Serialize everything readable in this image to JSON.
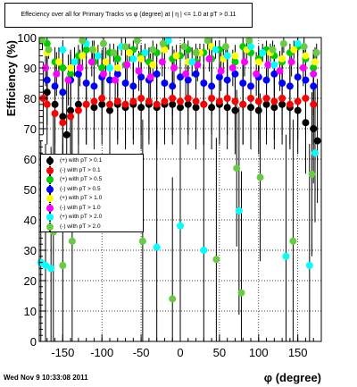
{
  "title": "Effeciency over all for Primary Tracks vs φ (degree) at |  η | <= 1.0 at pT > 0.11",
  "timestamp": "Wed Nov  9 10:33:08 2011",
  "chart_data": {
    "type": "scatter",
    "xlabel": "φ (degree)",
    "ylabel": "Efficiency (%)",
    "xlim": [
      -180,
      180
    ],
    "ylim": [
      0,
      100
    ],
    "xticks": [
      -150,
      -100,
      -50,
      0,
      50,
      100,
      150
    ],
    "yticks": [
      0,
      10,
      20,
      30,
      40,
      50,
      60,
      70,
      80,
      90,
      100
    ],
    "grid": true,
    "legend_position": "left-middle",
    "series": [
      {
        "name": "(+) with pT > 0.1",
        "color": "#000000",
        "x": [
          -170,
          -160,
          -150,
          -145,
          -140,
          -130,
          -120,
          -110,
          -100,
          -90,
          -80,
          -70,
          -60,
          -50,
          -40,
          -30,
          -20,
          -10,
          0,
          10,
          20,
          30,
          40,
          50,
          60,
          70,
          80,
          90,
          100,
          110,
          120,
          130,
          140,
          150,
          160,
          170,
          175
        ],
        "y": [
          82,
          78,
          74,
          68,
          76,
          78,
          78,
          77,
          78,
          76,
          78,
          77,
          78,
          77,
          78,
          77,
          78,
          78,
          77,
          78,
          77,
          78,
          77,
          78,
          77,
          76,
          78,
          77,
          76,
          78,
          77,
          78,
          77,
          76,
          72,
          70,
          66
        ]
      },
      {
        "name": "(-) with pT > 0.1",
        "color": "#ff0000",
        "x": [
          -175,
          -170,
          -160,
          -150,
          -140,
          -130,
          -120,
          -110,
          -100,
          -90,
          -80,
          -70,
          -60,
          -50,
          -40,
          -30,
          -20,
          -10,
          0,
          10,
          20,
          30,
          40,
          50,
          60,
          70,
          80,
          90,
          100,
          110,
          120,
          130,
          140,
          150,
          160,
          170
        ],
        "y": [
          80,
          78,
          75,
          72,
          74,
          76,
          78,
          79,
          80,
          78,
          79,
          78,
          79,
          80,
          79,
          78,
          79,
          80,
          79,
          80,
          79,
          78,
          80,
          79,
          80,
          79,
          78,
          80,
          79,
          80,
          79,
          80,
          78,
          79,
          80,
          78
        ]
      },
      {
        "name": "(+) with pT > 0.5",
        "color": "#00cc00",
        "x": [
          -170,
          -160,
          -150,
          -140,
          -130,
          -120,
          -110,
          -100,
          -90,
          -80,
          -70,
          -60,
          -50,
          -40,
          -30,
          -20,
          -10,
          0,
          10,
          20,
          30,
          40,
          50,
          60,
          70,
          80,
          90,
          100,
          110,
          120,
          130,
          140,
          150,
          160,
          170
        ],
        "y": [
          98,
          92,
          90,
          88,
          94,
          96,
          92,
          90,
          95,
          93,
          91,
          96,
          94,
          92,
          95,
          97,
          93,
          94,
          96,
          92,
          95,
          93,
          96,
          94,
          92,
          97,
          95,
          93,
          96,
          94,
          92,
          95,
          97,
          93,
          90
        ]
      },
      {
        "name": "(-) with pT > 0.5",
        "color": "#0000ff",
        "x": [
          -170,
          -160,
          -150,
          -140,
          -130,
          -120,
          -110,
          -100,
          -90,
          -80,
          -70,
          -60,
          -50,
          -40,
          -30,
          -20,
          -10,
          0,
          10,
          20,
          30,
          40,
          50,
          60,
          70,
          80,
          90,
          100,
          110,
          120,
          130,
          140,
          150,
          160,
          170
        ],
        "y": [
          86,
          84,
          82,
          86,
          88,
          85,
          84,
          87,
          86,
          88,
          85,
          84,
          87,
          86,
          88,
          85,
          84,
          87,
          86,
          88,
          85,
          84,
          87,
          86,
          88,
          85,
          84,
          87,
          86,
          88,
          85,
          84,
          87,
          86,
          84
        ]
      },
      {
        "name": "(+) with pT > 1.0",
        "color": "#ffff00",
        "x": [
          -170,
          -155,
          -140,
          -125,
          -110,
          -95,
          -80,
          -65,
          -50,
          -35,
          -20,
          -5,
          10,
          25,
          40,
          55,
          70,
          85,
          100,
          115,
          130,
          145,
          160,
          172
        ],
        "y": [
          95,
          92,
          90,
          94,
          96,
          92,
          90,
          95,
          93,
          91,
          96,
          94,
          92,
          95,
          97,
          93,
          94,
          96,
          92,
          95,
          93,
          96,
          94,
          92
        ]
      },
      {
        "name": "(-) with pT > 1.0",
        "color": "#ff00ff",
        "x": [
          -172,
          -158,
          -143,
          -128,
          -113,
          -98,
          -83,
          -68,
          -53,
          -38,
          -23,
          -8,
          7,
          22,
          37,
          52,
          67,
          82,
          97,
          112,
          127,
          142,
          157,
          170
        ],
        "y": [
          90,
          88,
          86,
          90,
          92,
          88,
          86,
          91,
          89,
          87,
          92,
          90,
          88,
          91,
          93,
          89,
          90,
          92,
          88,
          91,
          89,
          92,
          90,
          88
        ]
      },
      {
        "name": "(+) with pT > 2.0",
        "color": "#00ffff",
        "x": [
          -178,
          -172,
          -165,
          -150,
          -135,
          -120,
          -105,
          -90,
          -75,
          -60,
          -45,
          -30,
          -15,
          0,
          15,
          30,
          45,
          60,
          75,
          90,
          105,
          120,
          135,
          150,
          165,
          172
        ],
        "y": [
          26,
          25,
          24,
          96,
          92,
          98,
          94,
          90,
          97,
          93,
          95,
          31,
          99,
          38,
          92,
          30,
          96,
          94,
          43,
          97,
          95,
          91,
          28,
          98,
          25,
          62
        ]
      },
      {
        "name": "(-) with pT > 2.0",
        "color": "#66cc44",
        "x": [
          -176,
          -168,
          -162,
          -150,
          -138,
          -125,
          -112,
          -98,
          -85,
          -70,
          -55,
          -48,
          -35,
          -22,
          -10,
          5,
          20,
          35,
          46,
          58,
          72,
          78,
          88,
          102,
          118,
          132,
          144,
          158,
          168,
          174
        ],
        "y": [
          99,
          96,
          36,
          25,
          33,
          99,
          96,
          98,
          95,
          97,
          99,
          33,
          96,
          98,
          14,
          97,
          95,
          99,
          27,
          97,
          57,
          16,
          99,
          54,
          96,
          98,
          33,
          97,
          55,
          95
        ]
      }
    ]
  }
}
